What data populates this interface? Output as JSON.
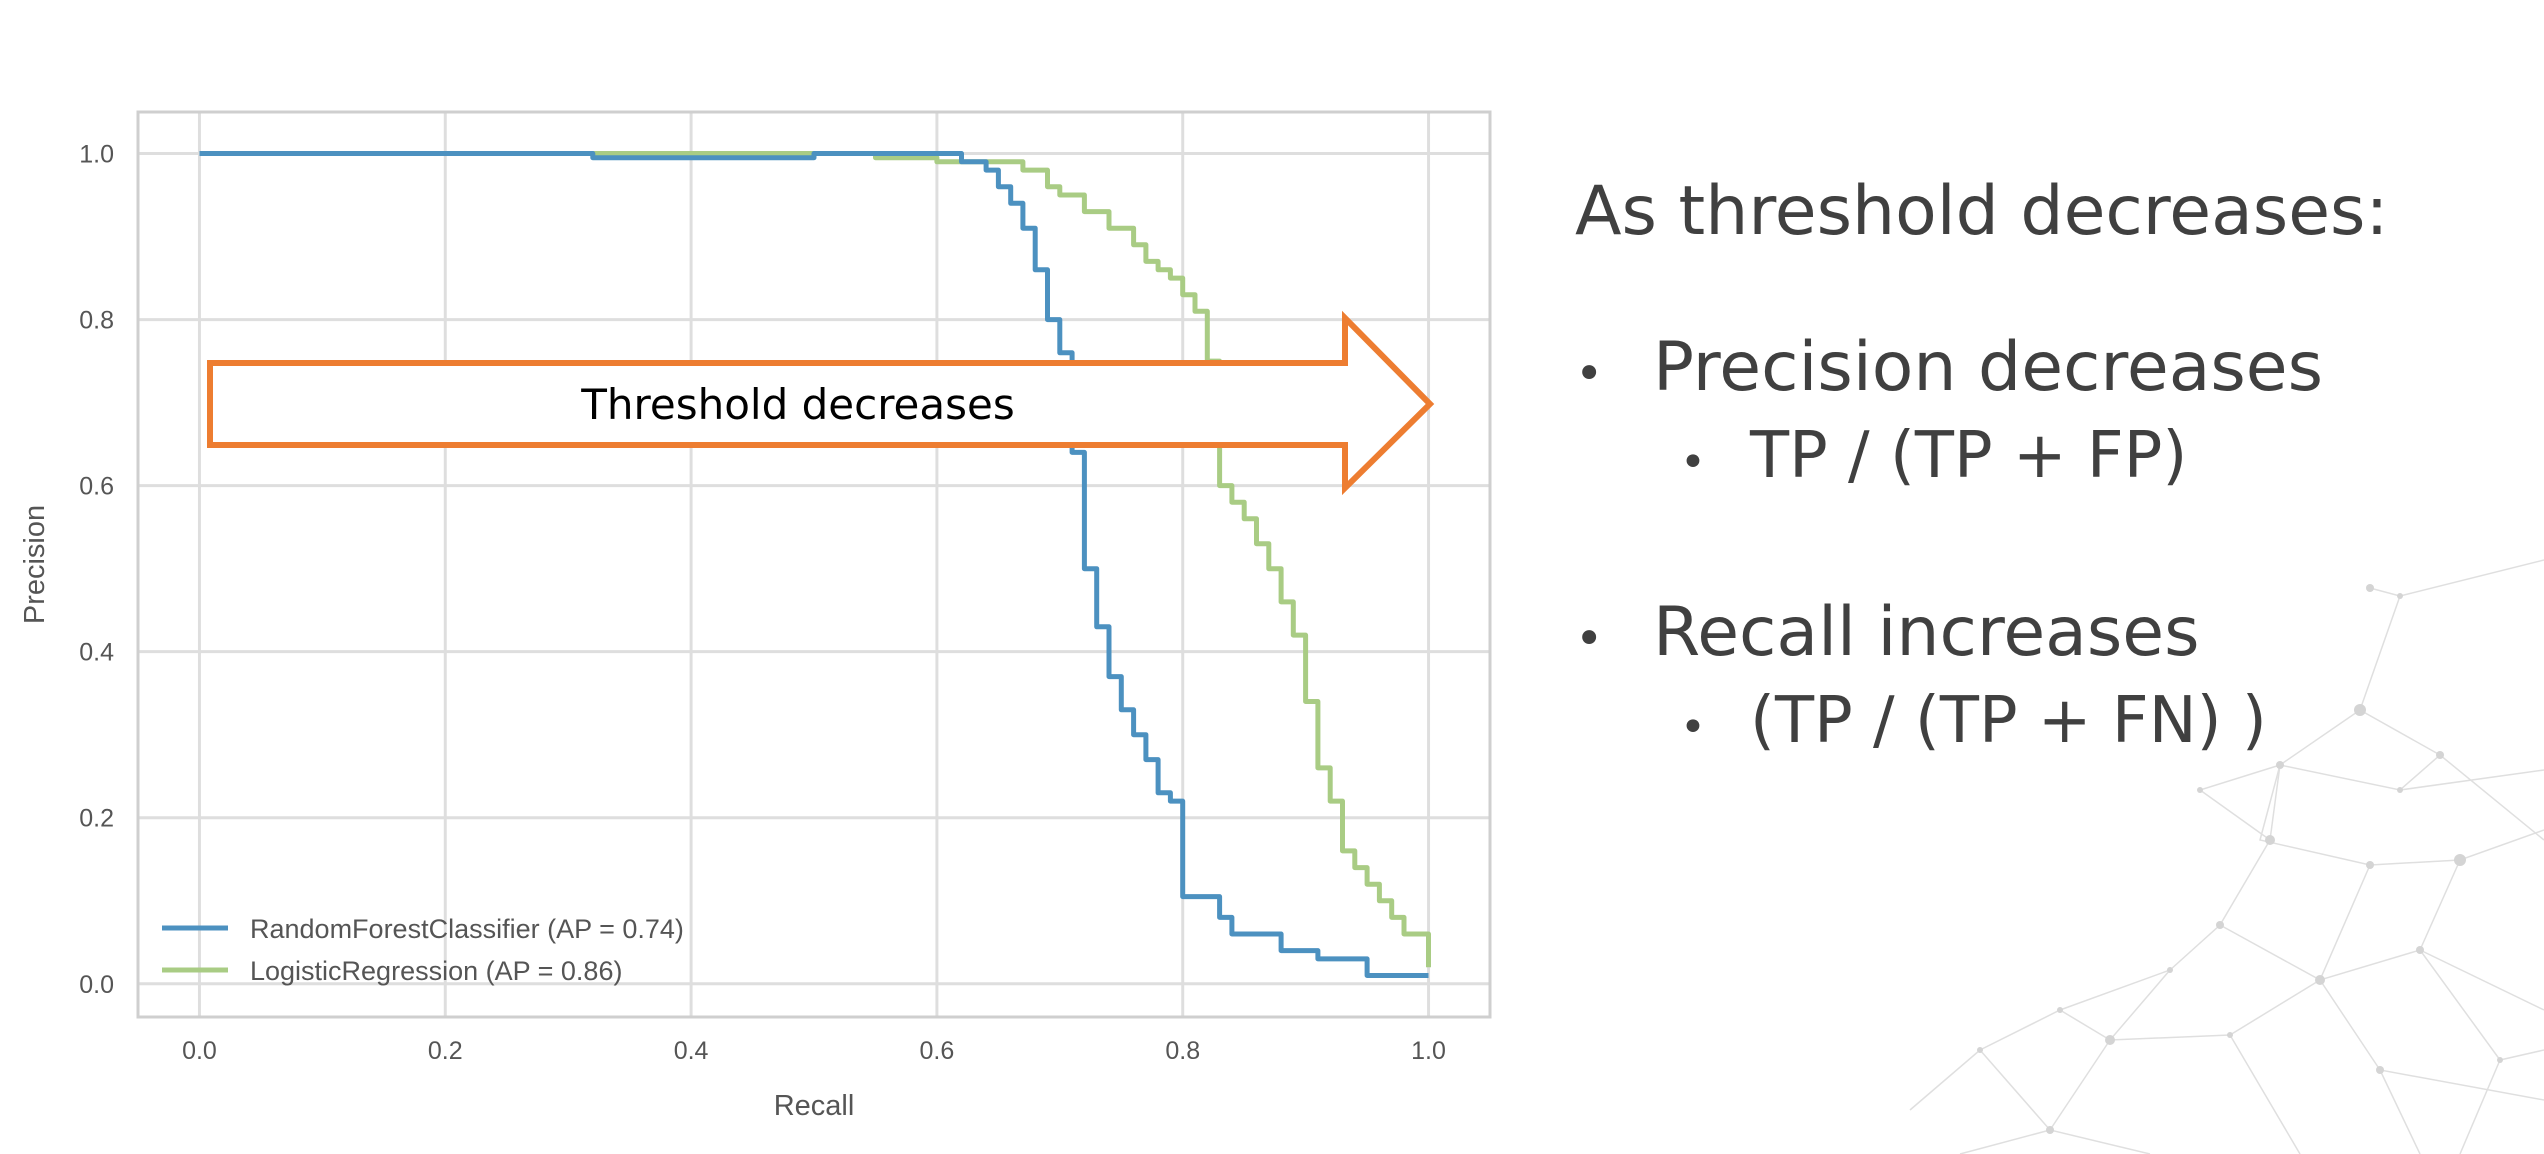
{
  "chart_data": {
    "type": "line",
    "title": "",
    "xlabel": "Recall",
    "ylabel": "Precision",
    "xlim": [
      -0.05,
      1.05
    ],
    "ylim": [
      -0.04,
      1.05
    ],
    "xticks": [
      "0.0",
      "0.2",
      "0.4",
      "0.6",
      "0.8",
      "1.0"
    ],
    "yticks": [
      "0.0",
      "0.2",
      "0.4",
      "0.6",
      "0.8",
      "1.0"
    ],
    "grid": true,
    "legend_position": "lower-left",
    "series": [
      {
        "name": "RandomForestClassifier (AP = 0.74)",
        "color": "#4c91c0",
        "x": [
          0.0,
          0.32,
          0.32,
          0.5,
          0.5,
          0.61,
          0.62,
          0.64,
          0.65,
          0.66,
          0.67,
          0.67,
          0.68,
          0.68,
          0.69,
          0.69,
          0.7,
          0.7,
          0.71,
          0.71,
          0.71,
          0.72,
          0.72,
          0.73,
          0.73,
          0.74,
          0.74,
          0.75,
          0.75,
          0.76,
          0.76,
          0.77,
          0.77,
          0.78,
          0.78,
          0.79,
          0.8,
          0.8,
          0.8,
          0.83,
          0.83,
          0.84,
          0.84,
          0.88,
          0.88,
          0.91,
          0.91,
          0.95,
          0.95,
          1.0
        ],
        "y": [
          1.0,
          1.0,
          0.995,
          0.995,
          1.0,
          1.0,
          0.99,
          0.98,
          0.96,
          0.94,
          0.93,
          0.91,
          0.89,
          0.86,
          0.84,
          0.8,
          0.78,
          0.76,
          0.74,
          0.72,
          0.64,
          0.58,
          0.5,
          0.45,
          0.43,
          0.41,
          0.37,
          0.35,
          0.33,
          0.32,
          0.3,
          0.3,
          0.27,
          0.26,
          0.23,
          0.22,
          0.22,
          0.11,
          0.105,
          0.105,
          0.08,
          0.08,
          0.06,
          0.06,
          0.04,
          0.04,
          0.03,
          0.03,
          0.01,
          0.01
        ]
      },
      {
        "name": "LogisticRegression (AP = 0.86)",
        "color": "#a9cc84",
        "x": [
          0.0,
          0.55,
          0.6,
          0.66,
          0.67,
          0.69,
          0.7,
          0.72,
          0.74,
          0.76,
          0.77,
          0.78,
          0.79,
          0.8,
          0.81,
          0.82,
          0.82,
          0.83,
          0.83,
          0.84,
          0.85,
          0.86,
          0.87,
          0.88,
          0.89,
          0.9,
          0.9,
          0.91,
          0.91,
          0.92,
          0.93,
          0.93,
          0.94,
          0.95,
          0.96,
          0.97,
          0.98,
          1.0,
          1.0
        ],
        "y": [
          1.0,
          0.995,
          0.99,
          0.99,
          0.98,
          0.96,
          0.95,
          0.93,
          0.91,
          0.89,
          0.87,
          0.86,
          0.85,
          0.83,
          0.81,
          0.78,
          0.75,
          0.7,
          0.6,
          0.58,
          0.56,
          0.53,
          0.5,
          0.46,
          0.42,
          0.38,
          0.34,
          0.3,
          0.26,
          0.22,
          0.19,
          0.16,
          0.14,
          0.12,
          0.1,
          0.08,
          0.06,
          0.03,
          0.02
        ]
      }
    ],
    "annotation": {
      "text": "Threshold decreases",
      "color": "#ed7d31"
    }
  },
  "notes": {
    "heading": "As threshold decreases:",
    "bullet_char": "•",
    "items": [
      {
        "label": "Precision decreases",
        "sub": "TP /  (TP + FP)"
      },
      {
        "label": "Recall increases",
        "sub": "(TP /  (TP + FN) )"
      }
    ]
  }
}
